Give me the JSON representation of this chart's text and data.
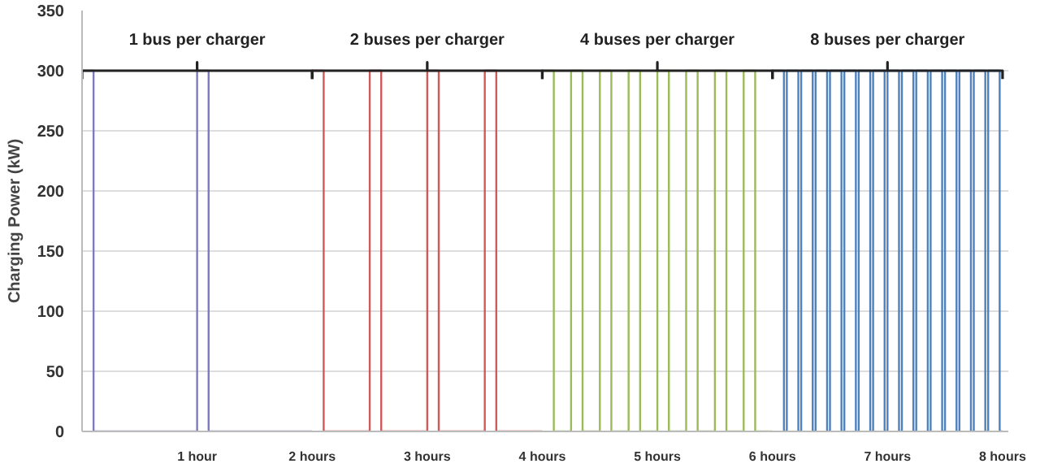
{
  "chart_data": {
    "type": "step",
    "ylabel": "Charging Power (kW)",
    "xlim": [
      0,
      8.05
    ],
    "ylim": [
      0,
      350
    ],
    "xticks": [
      {
        "value": 1,
        "label": "1 hour"
      },
      {
        "value": 2,
        "label": "2 hours"
      },
      {
        "value": 3,
        "label": "3 hours"
      },
      {
        "value": 4,
        "label": "4 hours"
      },
      {
        "value": 5,
        "label": "5 hours"
      },
      {
        "value": 6,
        "label": "6 hours"
      },
      {
        "value": 7,
        "label": "7 hours"
      },
      {
        "value": 8,
        "label": "8 hours"
      }
    ],
    "yticks": [
      0,
      50,
      100,
      150,
      200,
      250,
      300,
      350
    ],
    "grid": "y",
    "series": [
      {
        "color": "#7b7bc0",
        "x": [
          0,
          0.1,
          1.0,
          1.1,
          2.0
        ],
        "values": [
          300,
          0,
          300,
          0,
          0
        ]
      },
      {
        "color": "#d05a5a",
        "x": [
          2.0,
          2.1,
          2.5,
          2.6,
          3.0,
          3.1,
          3.5,
          3.6,
          4.0
        ],
        "values": [
          300,
          0,
          300,
          0,
          300,
          0,
          300,
          0,
          0
        ]
      },
      {
        "color": "#9bbb59",
        "x": [
          4.0,
          4.1,
          4.25,
          4.35,
          4.5,
          4.6,
          4.75,
          4.85,
          5.0,
          5.1,
          5.25,
          5.35,
          5.5,
          5.6,
          5.75,
          5.85,
          6.0
        ],
        "values": [
          300,
          0,
          300,
          0,
          300,
          0,
          300,
          0,
          300,
          0,
          300,
          0,
          300,
          0,
          300,
          0,
          0
        ]
      },
      {
        "color": "#4f81bd",
        "x": [
          6.0,
          6.1,
          6.125,
          6.225,
          6.25,
          6.35,
          6.375,
          6.475,
          6.5,
          6.6,
          6.625,
          6.725,
          6.75,
          6.85,
          6.875,
          6.975,
          7.0,
          7.1,
          7.125,
          7.225,
          7.25,
          7.35,
          7.375,
          7.475,
          7.5,
          7.6,
          7.625,
          7.725,
          7.75,
          7.85,
          7.875,
          7.975,
          8.0
        ],
        "values": [
          300,
          0,
          300,
          0,
          300,
          0,
          300,
          0,
          300,
          0,
          300,
          0,
          300,
          0,
          300,
          0,
          300,
          0,
          300,
          0,
          300,
          0,
          300,
          0,
          300,
          0,
          300,
          0,
          300,
          0,
          300,
          0,
          0
        ]
      },
      {
        "type": "line",
        "color": "#222222",
        "x": [
          0,
          0,
          1,
          1,
          1,
          2,
          2
        ],
        "values": [
          293,
          300,
          300,
          307,
          300,
          300,
          293
        ]
      },
      {
        "type": "line",
        "color": "#222222",
        "x": [
          2,
          2,
          3,
          3,
          3,
          4,
          4
        ],
        "values": [
          293,
          300,
          300,
          307,
          300,
          300,
          293
        ]
      },
      {
        "type": "line",
        "color": "#222222",
        "x": [
          4,
          4,
          5,
          5,
          5,
          6,
          6
        ],
        "values": [
          293,
          300,
          300,
          307,
          300,
          300,
          293
        ]
      },
      {
        "type": "line",
        "color": "#222222",
        "x": [
          6,
          6,
          7,
          7,
          7,
          8,
          8
        ],
        "values": [
          293,
          300,
          300,
          307,
          300,
          300,
          293
        ]
      }
    ],
    "annotations": [
      {
        "text": "1 bus per charger",
        "x": 1,
        "y": 300
      },
      {
        "text": "2 buses per charger",
        "x": 3,
        "y": 300
      },
      {
        "text": "4 buses per charger",
        "x": 5,
        "y": 300
      },
      {
        "text": "8 buses per charger",
        "x": 7,
        "y": 300
      }
    ]
  }
}
